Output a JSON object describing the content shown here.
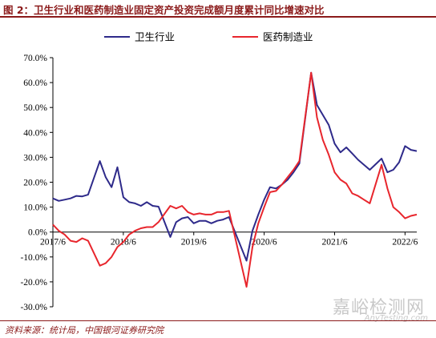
{
  "header": {
    "title": "图 2：卫生行业和医药制造业固定资产投资完成额月度累计同比增速对比"
  },
  "footer": {
    "source": "资料来源：统计局，中国银河证券研究院"
  },
  "watermark": {
    "main": "嘉峪检测网",
    "sub": "AnyTesting.com"
  },
  "colors": {
    "health": "#2e2a8a",
    "pharma": "#e8262d",
    "title": "#8b1a1a"
  },
  "chart_data": {
    "type": "line",
    "y_axis": {
      "ticks": [
        70,
        60,
        50,
        40,
        30,
        20,
        10,
        0,
        -10,
        -20,
        -30
      ],
      "tick_labels": [
        "70.0%",
        "60.0%",
        "50.0%",
        "40.0%",
        "30.0%",
        "20.0%",
        "10.0%",
        "0.0%",
        "-10.0%",
        "-20.0%",
        "-30.0%"
      ],
      "ylim": [
        -30,
        70
      ]
    },
    "x_axis": {
      "range": [
        "2017/6",
        "2022/8"
      ],
      "tick_labels": [
        "2017/6",
        "2018/6",
        "2019/6",
        "2020/6",
        "2021/6",
        "2022/6"
      ]
    },
    "grid": false,
    "legend": "top-left",
    "series": [
      {
        "name": "卫生行业",
        "color": "#2e2a8a",
        "points": [
          [
            "2017/6",
            13.5
          ],
          [
            "2017/7",
            12.5
          ],
          [
            "2017/8",
            13.0
          ],
          [
            "2017/9",
            13.5
          ],
          [
            "2017/10",
            14.5
          ],
          [
            "2017/11",
            14.3
          ],
          [
            "2017/12",
            15.0
          ],
          [
            "2018/2",
            28.5
          ],
          [
            "2018/3",
            22.0
          ],
          [
            "2018/4",
            18.0
          ],
          [
            "2018/5",
            26.0
          ],
          [
            "2018/6",
            14.0
          ],
          [
            "2018/7",
            12.0
          ],
          [
            "2018/8",
            11.5
          ],
          [
            "2018/9",
            10.5
          ],
          [
            "2018/10",
            12.0
          ],
          [
            "2018/11",
            10.5
          ],
          [
            "2018/12",
            10.2
          ],
          [
            "2019/2",
            -2.0
          ],
          [
            "2019/3",
            4.0
          ],
          [
            "2019/4",
            5.5
          ],
          [
            "2019/5",
            6.0
          ],
          [
            "2019/6",
            3.5
          ],
          [
            "2019/7",
            4.5
          ],
          [
            "2019/8",
            4.5
          ],
          [
            "2019/9",
            3.5
          ],
          [
            "2019/10",
            4.5
          ],
          [
            "2019/11",
            5.0
          ],
          [
            "2019/12",
            6.0
          ],
          [
            "2020/3",
            -11.5
          ],
          [
            "2020/4",
            0.5
          ],
          [
            "2020/5",
            7.0
          ],
          [
            "2020/6",
            13.0
          ],
          [
            "2020/7",
            18.0
          ],
          [
            "2020/8",
            17.5
          ],
          [
            "2020/9",
            19.0
          ],
          [
            "2020/10",
            21.0
          ],
          [
            "2020/11",
            24.0
          ],
          [
            "2020/12",
            27.5
          ],
          [
            "2021/2",
            64.0
          ],
          [
            "2021/3",
            51.0
          ],
          [
            "2021/4",
            47.0
          ],
          [
            "2021/5",
            43.0
          ],
          [
            "2021/6",
            35.5
          ],
          [
            "2021/7",
            32.0
          ],
          [
            "2021/8",
            34.0
          ],
          [
            "2021/9",
            31.5
          ],
          [
            "2021/10",
            29.0
          ],
          [
            "2021/11",
            27.0
          ],
          [
            "2021/12",
            25.0
          ],
          [
            "2022/2",
            29.5
          ],
          [
            "2022/3",
            24.0
          ],
          [
            "2022/4",
            25.0
          ],
          [
            "2022/5",
            28.0
          ],
          [
            "2022/6",
            34.5
          ],
          [
            "2022/7",
            33.0
          ],
          [
            "2022/8",
            32.5
          ]
        ]
      },
      {
        "name": "医药制造业",
        "color": "#e8262d",
        "points": [
          [
            "2017/6",
            3.0
          ],
          [
            "2017/7",
            0.5
          ],
          [
            "2017/8",
            -1.0
          ],
          [
            "2017/9",
            -3.5
          ],
          [
            "2017/10",
            -4.0
          ],
          [
            "2017/11",
            -2.5
          ],
          [
            "2017/12",
            -3.5
          ],
          [
            "2018/2",
            -13.5
          ],
          [
            "2018/3",
            -12.5
          ],
          [
            "2018/4",
            -10.0
          ],
          [
            "2018/5",
            -6.0
          ],
          [
            "2018/6",
            -4.0
          ],
          [
            "2018/7",
            -1.0
          ],
          [
            "2018/8",
            0.5
          ],
          [
            "2018/9",
            1.5
          ],
          [
            "2018/10",
            2.0
          ],
          [
            "2018/11",
            2.0
          ],
          [
            "2018/12",
            4.0
          ],
          [
            "2019/2",
            10.5
          ],
          [
            "2019/3",
            9.5
          ],
          [
            "2019/4",
            10.5
          ],
          [
            "2019/5",
            8.0
          ],
          [
            "2019/6",
            7.0
          ],
          [
            "2019/7",
            7.5
          ],
          [
            "2019/8",
            7.0
          ],
          [
            "2019/9",
            7.0
          ],
          [
            "2019/10",
            8.0
          ],
          [
            "2019/11",
            8.0
          ],
          [
            "2019/12",
            8.5
          ],
          [
            "2020/3",
            -22.0
          ],
          [
            "2020/4",
            -6.0
          ],
          [
            "2020/5",
            3.5
          ],
          [
            "2020/6",
            10.0
          ],
          [
            "2020/7",
            16.0
          ],
          [
            "2020/8",
            16.5
          ],
          [
            "2020/9",
            19.0
          ],
          [
            "2020/10",
            22.0
          ],
          [
            "2020/11",
            25.0
          ],
          [
            "2020/12",
            28.5
          ],
          [
            "2021/2",
            64.0
          ],
          [
            "2021/3",
            46.0
          ],
          [
            "2021/4",
            37.0
          ],
          [
            "2021/5",
            31.0
          ],
          [
            "2021/6",
            24.0
          ],
          [
            "2021/7",
            21.0
          ],
          [
            "2021/8",
            19.5
          ],
          [
            "2021/9",
            15.5
          ],
          [
            "2021/10",
            14.5
          ],
          [
            "2021/11",
            13.0
          ],
          [
            "2021/12",
            11.5
          ],
          [
            "2022/2",
            27.0
          ],
          [
            "2022/3",
            17.5
          ],
          [
            "2022/4",
            10.0
          ],
          [
            "2022/5",
            8.0
          ],
          [
            "2022/6",
            5.5
          ],
          [
            "2022/7",
            6.5
          ],
          [
            "2022/8",
            7.0
          ]
        ]
      }
    ]
  }
}
